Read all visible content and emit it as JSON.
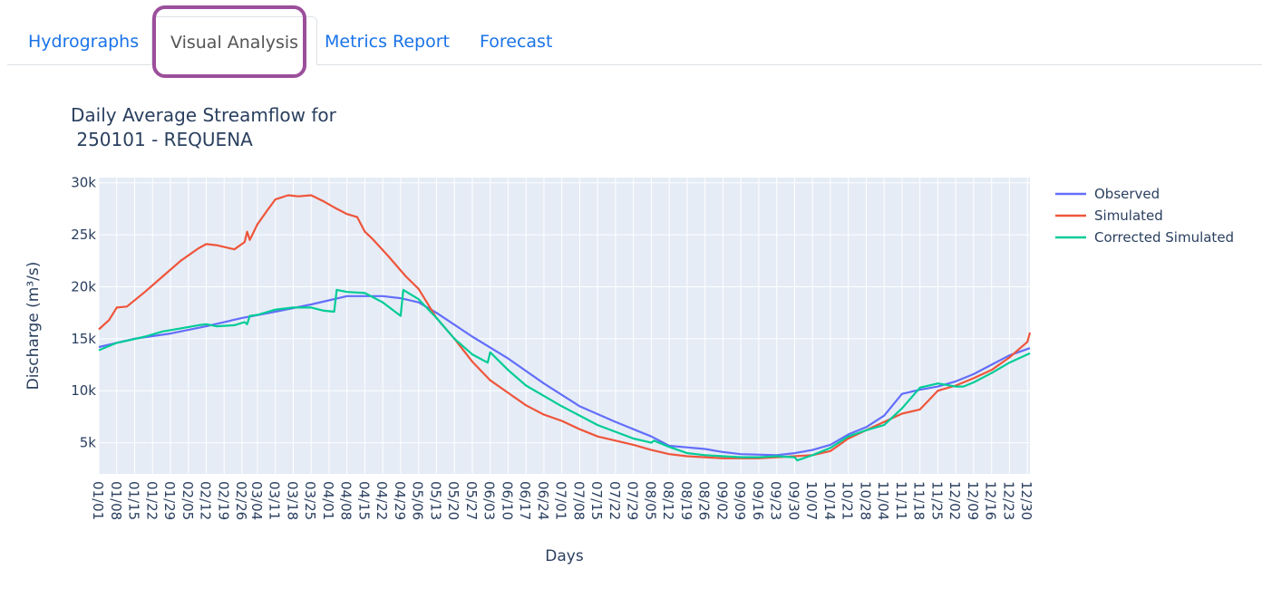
{
  "tabs": [
    {
      "label": "Hydrographs",
      "active": false
    },
    {
      "label": "Visual Analysis",
      "active": true
    },
    {
      "label": "Metrics Report",
      "active": false
    },
    {
      "label": "Forecast",
      "active": false
    }
  ],
  "colors": {
    "accent": "#1a73e8",
    "highlight": "#9b4f9b",
    "plot_bg": "#e5ecf6",
    "observed": "#636efa",
    "simulated": "#ef553b",
    "corrected": "#00cc96"
  },
  "chart_data": {
    "type": "line",
    "title_line1": "Daily Average Streamflow for",
    "title_line2": " 250101 - REQUENA",
    "xlabel": "Days",
    "ylabel": "Discharge (m³/s)",
    "ylim": [
      2000,
      30500
    ],
    "xlim": [
      "01/01",
      "12/31"
    ],
    "grid": true,
    "legend_position": "top-right",
    "x_ticks": [
      "01/01",
      "01/08",
      "01/15",
      "01/22",
      "01/29",
      "02/05",
      "02/12",
      "02/19",
      "02/26",
      "03/04",
      "03/11",
      "03/18",
      "03/25",
      "04/01",
      "04/08",
      "04/15",
      "04/22",
      "04/29",
      "05/06",
      "05/13",
      "05/20",
      "05/27",
      "06/03",
      "06/10",
      "06/17",
      "06/24",
      "07/01",
      "07/08",
      "07/15",
      "07/22",
      "07/29",
      "08/05",
      "08/12",
      "08/19",
      "08/26",
      "09/02",
      "09/09",
      "09/16",
      "09/23",
      "09/30",
      "10/07",
      "10/14",
      "10/21",
      "10/28",
      "11/04",
      "11/11",
      "11/18",
      "11/25",
      "12/02",
      "12/09",
      "12/16",
      "12/23",
      "12/30"
    ],
    "y_ticks": [
      {
        "value": 5000,
        "label": "5k"
      },
      {
        "value": 10000,
        "label": "10k"
      },
      {
        "value": 15000,
        "label": "15k"
      },
      {
        "value": 20000,
        "label": "20k"
      },
      {
        "value": 25000,
        "label": "25k"
      },
      {
        "value": 30000,
        "label": "30k"
      }
    ],
    "series": [
      {
        "name": "Observed",
        "color": "#636efa",
        "x": [
          "01/01",
          "01/15",
          "01/29",
          "02/12",
          "02/26",
          "03/11",
          "03/25",
          "04/08",
          "04/22",
          "04/29",
          "05/06",
          "05/13",
          "05/27",
          "06/10",
          "06/24",
          "07/08",
          "07/22",
          "08/05",
          "08/12",
          "08/26",
          "09/02",
          "09/09",
          "09/23",
          "09/30",
          "10/07",
          "10/14",
          "10/21",
          "10/28",
          "11/04",
          "11/11",
          "11/18",
          "11/25",
          "12/02",
          "12/09",
          "12/16",
          "12/23",
          "12/31"
        ],
        "y": [
          14200,
          15000,
          15500,
          16200,
          17000,
          17600,
          18300,
          19100,
          19100,
          18900,
          18500,
          17500,
          15200,
          13100,
          10700,
          8500,
          7000,
          5600,
          4700,
          4400,
          4100,
          3900,
          3800,
          4000,
          4300,
          4800,
          5800,
          6500,
          7600,
          9700,
          10100,
          10400,
          10900,
          11600,
          12500,
          13400,
          14100
        ]
      },
      {
        "name": "Simulated",
        "color": "#ef553b",
        "x": [
          "01/01",
          "01/05",
          "01/08",
          "01/12",
          "01/19",
          "01/26",
          "02/02",
          "02/09",
          "02/12",
          "02/16",
          "02/23",
          "02/27",
          "02/28",
          "03/01",
          "03/04",
          "03/08",
          "03/11",
          "03/16",
          "03/20",
          "03/25",
          "03/30",
          "04/04",
          "04/08",
          "04/12",
          "04/15",
          "04/18",
          "04/24",
          "05/01",
          "05/06",
          "05/13",
          "05/20",
          "05/27",
          "06/03",
          "06/10",
          "06/17",
          "06/24",
          "07/01",
          "07/08",
          "07/15",
          "07/29",
          "08/05",
          "08/12",
          "08/19",
          "08/26",
          "09/02",
          "09/09",
          "09/16",
          "09/23",
          "09/30",
          "10/07",
          "10/14",
          "10/21",
          "10/28",
          "11/04",
          "11/11",
          "11/18",
          "11/25",
          "12/02",
          "12/09",
          "12/16",
          "12/23",
          "12/30",
          "12/31"
        ],
        "y": [
          15900,
          16800,
          18000,
          18100,
          19500,
          21000,
          22500,
          23700,
          24100,
          24000,
          23600,
          24300,
          25300,
          24500,
          26000,
          27400,
          28400,
          28800,
          28700,
          28800,
          28200,
          27500,
          27000,
          26700,
          25300,
          24600,
          23000,
          21000,
          19800,
          17000,
          15000,
          12800,
          11000,
          9800,
          8600,
          7700,
          7100,
          6300,
          5600,
          4800,
          4300,
          3900,
          3700,
          3600,
          3500,
          3500,
          3500,
          3600,
          3700,
          3800,
          4200,
          5400,
          6200,
          7000,
          7800,
          8200,
          10000,
          10500,
          11200,
          12000,
          13200,
          14700,
          15600
        ]
      },
      {
        "name": "Corrected Simulated",
        "color": "#00cc96",
        "x": [
          "01/01",
          "01/08",
          "01/12",
          "01/19",
          "01/26",
          "02/02",
          "02/09",
          "02/12",
          "02/16",
          "02/23",
          "02/27",
          "02/28",
          "03/01",
          "03/04",
          "03/11",
          "03/18",
          "03/25",
          "03/30",
          "04/03",
          "04/04",
          "04/08",
          "04/15",
          "04/22",
          "04/29",
          "04/30",
          "05/06",
          "05/13",
          "05/20",
          "05/27",
          "06/02",
          "06/03",
          "06/10",
          "06/17",
          "06/24",
          "07/01",
          "07/15",
          "07/29",
          "08/05",
          "08/06",
          "08/12",
          "08/19",
          "08/26",
          "09/02",
          "09/09",
          "09/16",
          "09/23",
          "09/30",
          "10/01",
          "10/07",
          "10/14",
          "10/21",
          "10/28",
          "11/04",
          "11/11",
          "11/18",
          "11/25",
          "12/02",
          "12/05",
          "12/09",
          "12/16",
          "12/23",
          "12/31"
        ],
        "y": [
          13900,
          14600,
          14800,
          15200,
          15700,
          16000,
          16300,
          16400,
          16200,
          16300,
          16600,
          16400,
          17200,
          17300,
          17800,
          18000,
          18000,
          17700,
          17600,
          19700,
          19500,
          19400,
          18500,
          17200,
          19700,
          18800,
          17000,
          15000,
          13500,
          12700,
          13700,
          12000,
          10500,
          9500,
          8500,
          6700,
          5400,
          5000,
          5200,
          4600,
          4000,
          3800,
          3700,
          3600,
          3600,
          3700,
          3600,
          3300,
          3800,
          4500,
          5600,
          6200,
          6700,
          8300,
          10300,
          10700,
          10400,
          10400,
          10800,
          11700,
          12700,
          13600
        ]
      }
    ]
  }
}
